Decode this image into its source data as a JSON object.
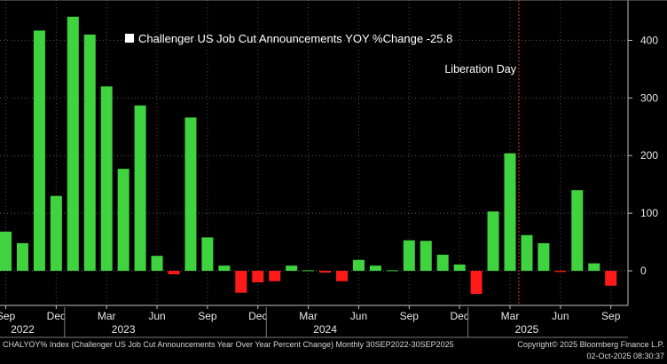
{
  "chart_data": {
    "type": "bar",
    "legend": {
      "label": "Challenger US Job Cut Announcements YOY %Change -25.8",
      "color": "#ffffff",
      "placement": "top-left"
    },
    "annotation": {
      "label": "Liberation Day",
      "x": "2025-04",
      "line_color": "#ff2a2a",
      "line_style": "dotted"
    },
    "positive_color": "#3fd43f",
    "negative_color": "#ff1a1a",
    "x": [
      "2022-09",
      "2022-10",
      "2022-11",
      "2022-12",
      "2023-01",
      "2023-02",
      "2023-03",
      "2023-04",
      "2023-05",
      "2023-06",
      "2023-07",
      "2023-08",
      "2023-09",
      "2023-10",
      "2023-11",
      "2023-12",
      "2024-01",
      "2024-02",
      "2024-03",
      "2024-04",
      "2024-05",
      "2024-06",
      "2024-07",
      "2024-08",
      "2024-09",
      "2024-10",
      "2024-11",
      "2024-12",
      "2025-01",
      "2025-02",
      "2025-03",
      "2025-04",
      "2025-05",
      "2025-06",
      "2025-07",
      "2025-08",
      "2025-09"
    ],
    "values": [
      68,
      48,
      417,
      130,
      441,
      410,
      320,
      177,
      287,
      26,
      -6,
      266,
      58,
      9,
      -38,
      -20,
      -18,
      9,
      1,
      -3,
      -18,
      19,
      9,
      1,
      53,
      52,
      28,
      11,
      -40,
      103,
      204,
      62,
      48,
      -2,
      140,
      13,
      -25.8
    ],
    "ylim": [
      -60,
      470
    ],
    "y_ticks": [
      0,
      100,
      200,
      300,
      400
    ],
    "month_ticks": [
      {
        "label": "Sep",
        "x": "2022-09"
      },
      {
        "label": "Dec",
        "x": "2022-12"
      },
      {
        "label": "Mar",
        "x": "2023-03"
      },
      {
        "label": "Jun",
        "x": "2023-06"
      },
      {
        "label": "Sep",
        "x": "2023-09"
      },
      {
        "label": "Dec",
        "x": "2023-12"
      },
      {
        "label": "Mar",
        "x": "2024-03"
      },
      {
        "label": "Jun",
        "x": "2024-06"
      },
      {
        "label": "Sep",
        "x": "2024-09"
      },
      {
        "label": "Dec",
        "x": "2024-12"
      },
      {
        "label": "Mar",
        "x": "2025-03"
      },
      {
        "label": "Jun",
        "x": "2025-06"
      },
      {
        "label": "Sep",
        "x": "2025-09"
      }
    ],
    "year_ticks": [
      {
        "label": "2022",
        "x": "2022-10"
      },
      {
        "label": "2023",
        "x": "2023-04"
      },
      {
        "label": "2024",
        "x": "2024-04"
      },
      {
        "label": "2025",
        "x": "2025-04"
      }
    ],
    "grid": true,
    "grid_style": "dotted"
  },
  "footer": {
    "left": "CHALYOY% Index (Challenger US Job Cut Announcements Year Over Year Percent Change) Monthly 30SEP2022-30SEP2025",
    "right_line1": "Copyright© 2025 Bloomberg Finance L.P.",
    "right_line2": "02-Oct-2025 08:30:37"
  }
}
